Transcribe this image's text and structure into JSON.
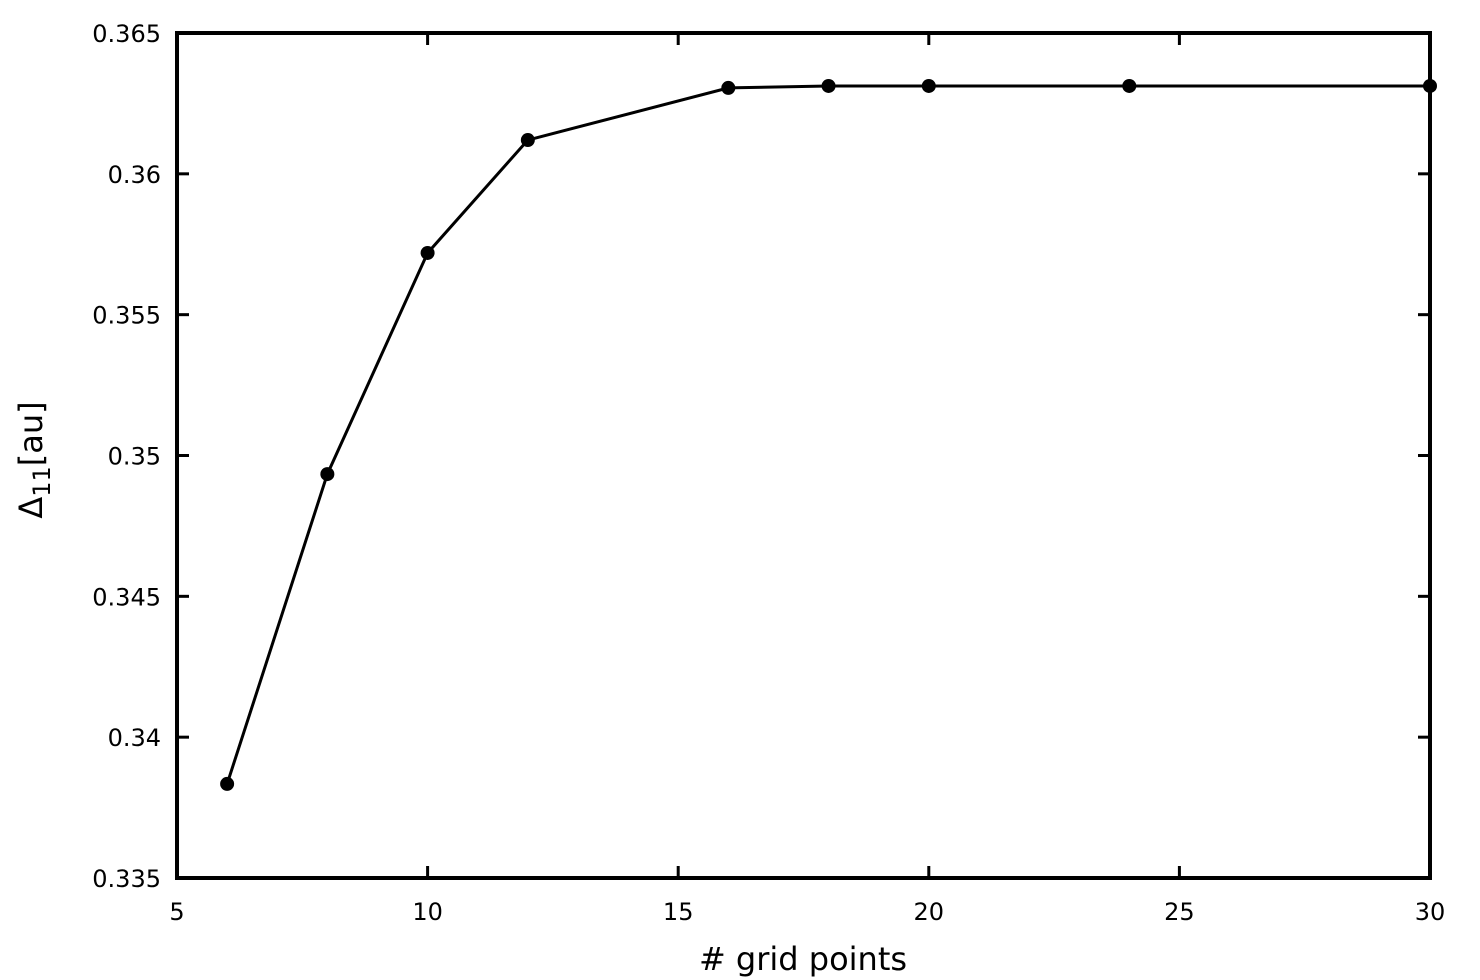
{
  "chart_data": {
    "type": "line",
    "x_label": "# grid points",
    "y_label": {
      "symbol": "Δ",
      "subscript": "11",
      "unit": "[au]"
    },
    "x": [
      6,
      8,
      10,
      12,
      16,
      18,
      20,
      24,
      30
    ],
    "series": [
      {
        "color": "#000000",
        "values": [
          0.33834,
          0.34934,
          0.35719,
          0.3612,
          0.36305,
          0.36312,
          0.36312,
          0.36312,
          0.36312
        ]
      }
    ],
    "xlim": [
      5,
      30
    ],
    "xticks": [
      5,
      10,
      15,
      20,
      25,
      30
    ],
    "ylim": [
      0.335,
      0.365
    ],
    "yticks": [
      0.335,
      0.34,
      0.345,
      0.35,
      0.355,
      0.36,
      0.365
    ],
    "grid": false,
    "markers": true
  }
}
